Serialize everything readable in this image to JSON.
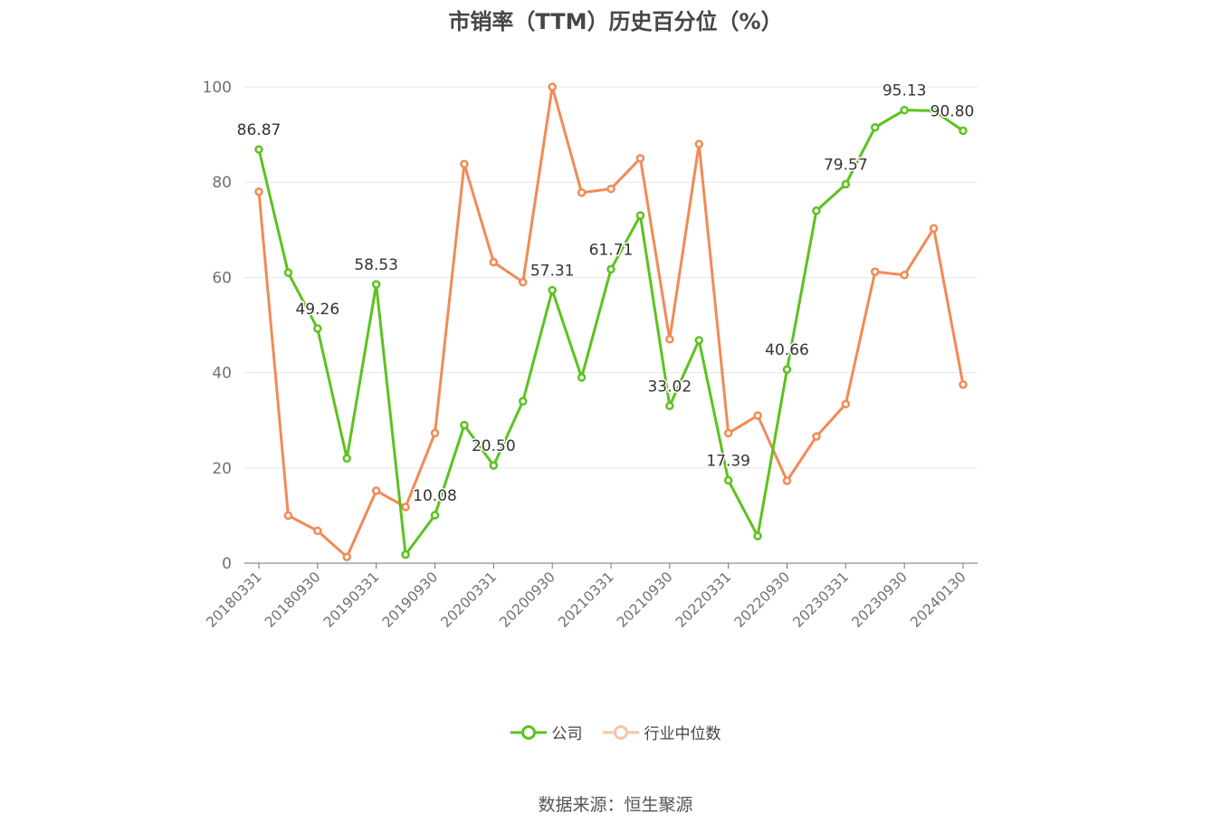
{
  "chart_data": {
    "type": "line",
    "title": "市销率（TTM）历史百分位（%）",
    "ylim": [
      0,
      100
    ],
    "yticks": [
      0,
      20,
      40,
      60,
      80,
      100
    ],
    "grid": true,
    "legend_position": "bottom",
    "x": [
      "20180331",
      "20180630",
      "20180930",
      "20181231",
      "20190331",
      "20190630",
      "20190930",
      "20191231",
      "20200331",
      "20200630",
      "20200930",
      "20201231",
      "20210331",
      "20210630",
      "20210930",
      "20211231",
      "20220331",
      "20220630",
      "20220930",
      "20221231",
      "20230331",
      "20230630",
      "20230930",
      "20231231",
      "20240130"
    ],
    "xticks": [
      "20180331",
      "20180930",
      "20190331",
      "20190930",
      "20200331",
      "20200930",
      "20210331",
      "20210930",
      "20220331",
      "20220930",
      "20230331",
      "20230930",
      "20240130"
    ],
    "series": [
      {
        "name": "公司",
        "color": "#5cc21f",
        "values": [
          86.87,
          61.0,
          49.26,
          22.0,
          58.53,
          1.8,
          10.08,
          29.0,
          20.5,
          34.0,
          57.31,
          39.0,
          61.71,
          73.0,
          33.02,
          46.8,
          17.39,
          5.7,
          40.66,
          74.0,
          79.57,
          91.5,
          95.13,
          95.0,
          90.8
        ],
        "data_labels": {
          "0": "86.87",
          "2": "49.26",
          "4": "58.53",
          "6": "10.08",
          "8": "20.50",
          "10": "57.31",
          "12": "61.71",
          "14": "33.02",
          "16": "17.39",
          "18": "40.66",
          "20": "79.57",
          "22": "95.13",
          "24": "90.80"
        }
      },
      {
        "name": "行业中位数",
        "color": "#f28a55",
        "values": [
          78.0,
          10.0,
          6.8,
          1.3,
          15.2,
          11.8,
          27.3,
          83.8,
          63.2,
          59.0,
          100.0,
          77.8,
          78.6,
          85.0,
          47.0,
          88.0,
          27.3,
          31.0,
          17.3,
          26.6,
          33.4,
          61.2,
          60.5,
          70.3,
          37.5
        ]
      }
    ]
  },
  "source_note": "数据来源：恒生聚源"
}
